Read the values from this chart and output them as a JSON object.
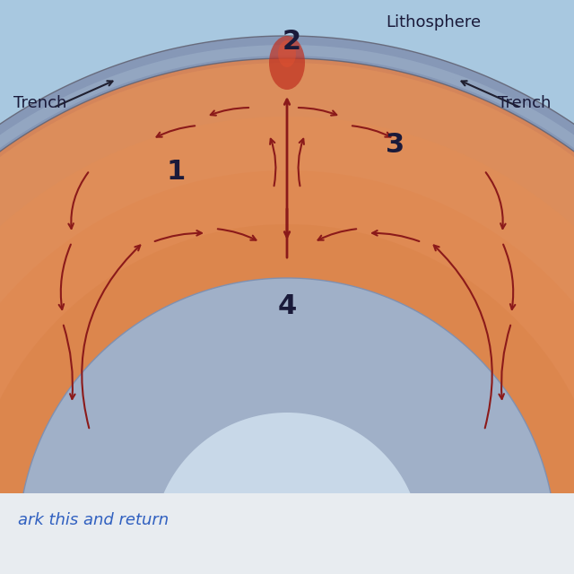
{
  "bg_color": "#a8c8e0",
  "bg_bottom_color": "#d4e8f0",
  "mantle_outer_color_center": "#e8a878",
  "mantle_outer_color_edge": "#d4785a",
  "core_color": "#b0bcd0",
  "core_inner_color": "#d0dce8",
  "lithosphere_color": "#8090b0",
  "lithosphere_edge_color": "#606880",
  "trench_color": "#8090b0",
  "arrow_color_dark": "#8b1a1a",
  "arrow_color_top": "#202030",
  "label_1": "1",
  "label_2": "2",
  "label_3": "3",
  "label_4": "4",
  "label_trench_left": "Trench",
  "label_trench_right": "Trench",
  "label_lithosphere": "Lithosphere",
  "bottom_text": "ark this and return",
  "fig_width": 6.4,
  "fig_height": 6.4
}
